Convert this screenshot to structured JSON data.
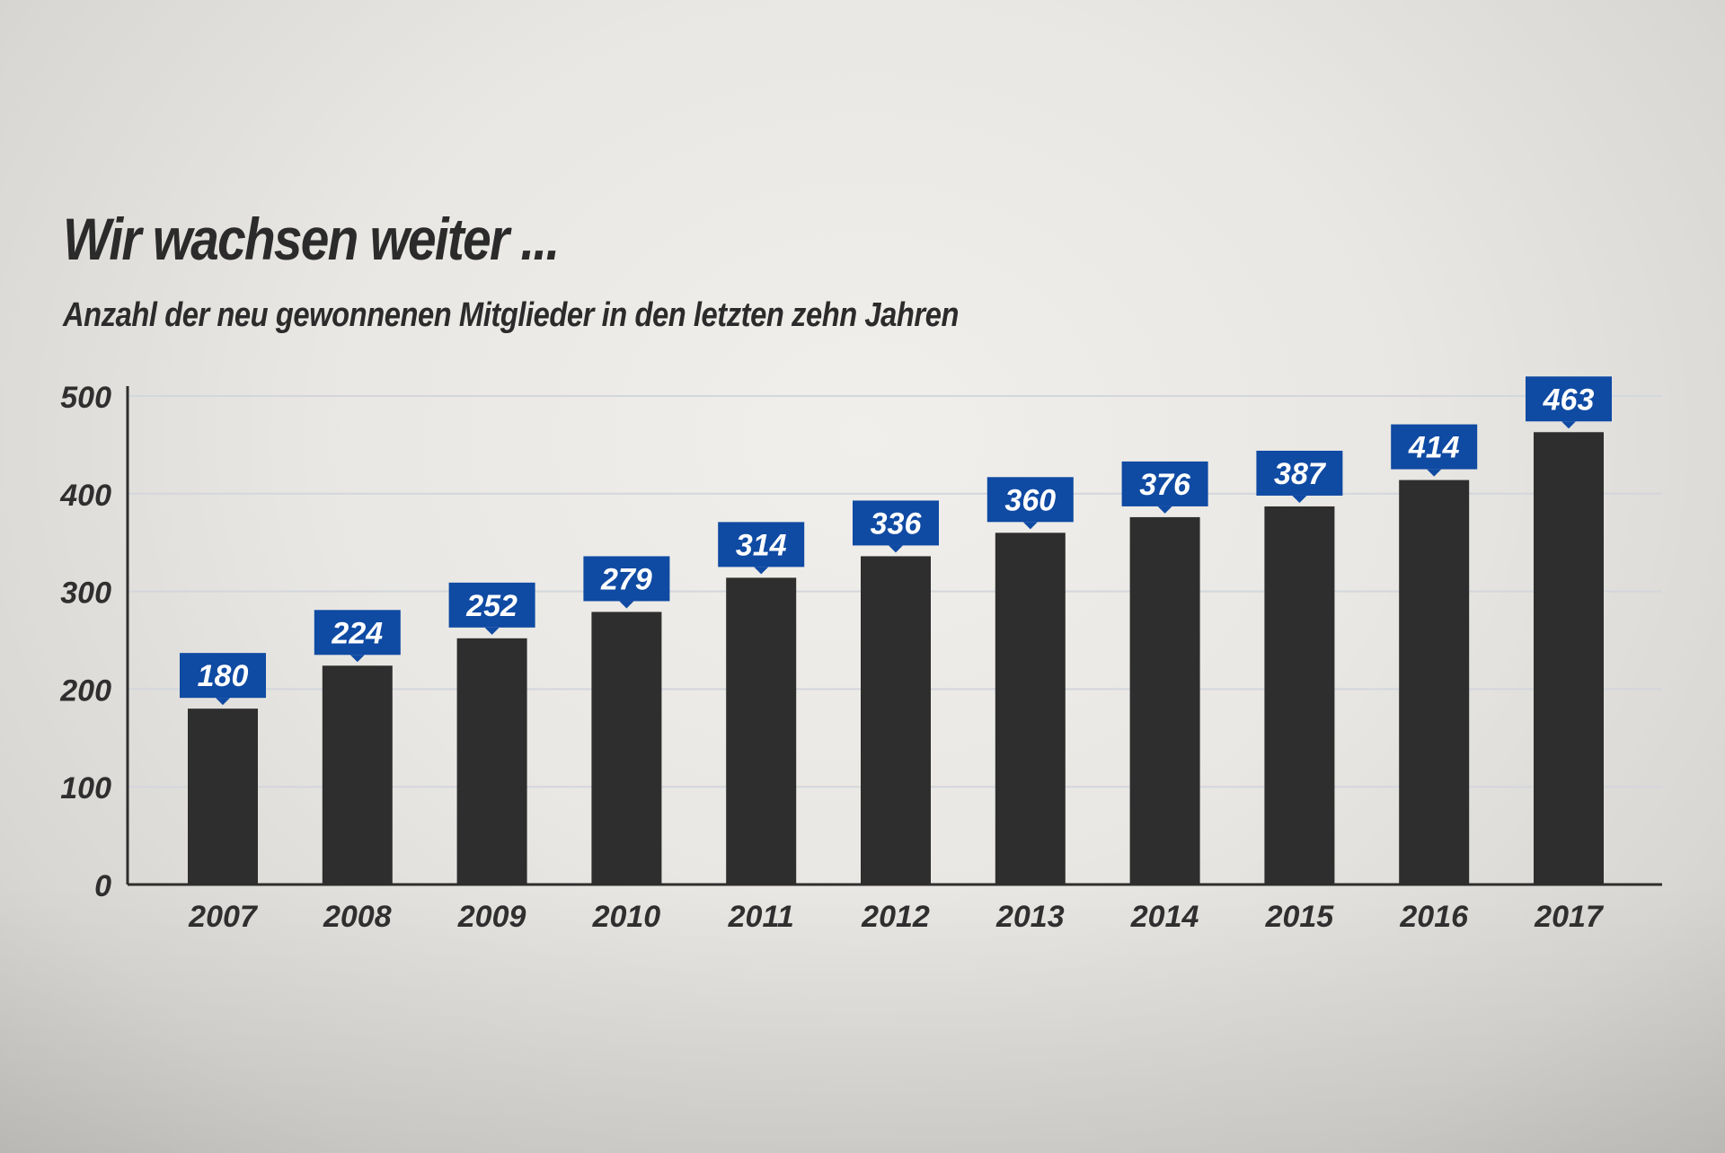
{
  "chart_data": {
    "type": "bar",
    "title": "Wir wachsen weiter ...",
    "subtitle": "Anzahl der neu gewonnenen Mitglieder in den letzten zehn Jahren",
    "categories": [
      "2007",
      "2008",
      "2009",
      "2010",
      "2011",
      "2012",
      "2013",
      "2014",
      "2015",
      "2016",
      "2017"
    ],
    "values": [
      180,
      224,
      252,
      279,
      314,
      336,
      360,
      376,
      387,
      414,
      463
    ],
    "ylim": [
      0,
      500
    ],
    "yticks": [
      0,
      100,
      200,
      300,
      400,
      500
    ],
    "xlabel": "",
    "ylabel": "",
    "grid": true,
    "colors": {
      "bar": "#2e2e2e",
      "label_box": "#0f4aa3",
      "label_text": "#ffffff",
      "axis": "#2e2e2e",
      "grid": "#d3d6dc",
      "text": "#2f2f2f"
    }
  }
}
